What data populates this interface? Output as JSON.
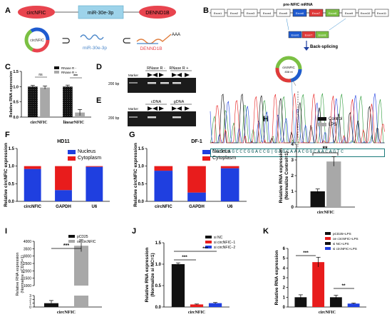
{
  "panels": {
    "A": "A",
    "B": "B",
    "C": "C",
    "D": "D",
    "E": "E",
    "F": "F",
    "G": "G",
    "H": "H",
    "I": "I",
    "J": "J",
    "K": "K"
  },
  "panel_a": {
    "circ_label": "circNFIC",
    "mir_label": "miR-30e-3p",
    "gene_label": "DENND1B",
    "ring_label": "circNFIC",
    "mir_small": "miR-30e-3p",
    "mrna_small": "DENND1B",
    "polya": "AAA",
    "colors": {
      "red": "#e8444e",
      "blue": "#9dd3ea"
    }
  },
  "panel_b": {
    "title": "pre-NFIC mRNA",
    "exons": [
      "Exon1",
      "Exon2",
      "Exon3",
      "Exon4",
      "Exon5",
      "Exon6",
      "Exon7",
      "Exon8",
      "Exon9",
      "Exon10",
      "Exon11"
    ],
    "exon_fill": [
      "#ffffff",
      "#ffffff",
      "#ffffff",
      "#ffffff",
      "#ffffff",
      "#1f5bd0",
      "#e03a3a",
      "#7bc043",
      "#ffffff",
      "#ffffff",
      "#ffffff"
    ],
    "small_exons": [
      "Exon6",
      "Exon7",
      "Exon8"
    ],
    "back_splicing": "Back-splicing",
    "ring_label": "circNFIC",
    "ring_sub": "838 nt",
    "sequence": "CAGCAGCCCGGACCG|GAGCAAACGGCAACAGTC"
  },
  "panel_c": {
    "legend": [
      "RNase R -",
      "RNase R +"
    ],
    "ylabel": "Relative RNA expression",
    "significance": [
      "ns",
      "***"
    ]
  },
  "panel_d": {
    "top_labels": [
      "RNase R -",
      "RNase R +"
    ],
    "marker": "Marker",
    "bp": "200 bp"
  },
  "panel_e": {
    "top_labels": [
      "cDNA",
      "gDNA"
    ],
    "marker": "Marker",
    "bp": "200 bp"
  },
  "panel_h": {
    "legend": [
      "Control",
      "LPS"
    ],
    "ylabel": "Relative RNA expression",
    "ylabel2": "(Normalize Control=1)",
    "significance": "**"
  },
  "panel_i": {
    "legend": [
      "pCD25",
      "oe circNFIC"
    ],
    "ylabel": "Relative RNA expression",
    "ylabel2": "(Normalize pCD25=1)",
    "significance": "***"
  },
  "panel_j": {
    "legend": [
      "si NC",
      "si circNFIC−1",
      "si circNFIC−2"
    ],
    "ylabel": "Relative RNA expression",
    "ylabel2": "(Normalize si NC=1)",
    "significance": [
      "***",
      "***"
    ]
  },
  "panel_k": {
    "legend": [
      "pCD25+LPS",
      "oe circNFIC+LPS",
      "si NC+LPS",
      "si circNFIC+LPS"
    ],
    "ylabel": "Relative RNA expression",
    "significance": [
      "***",
      "**"
    ]
  },
  "chart_data": [
    {
      "panel": "C",
      "type": "bar",
      "categories": [
        "circNFIC",
        "linearNFIC"
      ],
      "series": [
        {
          "name": "RNase R -",
          "values": [
            1.0,
            1.0
          ],
          "errors": [
            0.04,
            0.05
          ],
          "color": "#111111"
        },
        {
          "name": "RNase R +",
          "values": [
            0.97,
            0.15
          ],
          "errors": [
            0.05,
            0.1
          ],
          "color": "#a8a8a8"
        }
      ],
      "yticks": [
        "0.0",
        "0.5",
        "1.0",
        "1.5"
      ],
      "ylim": [
        0,
        1.5
      ],
      "ylabel": "Relative RNA expression"
    },
    {
      "panel": "F",
      "type": "bar",
      "stacked": true,
      "title": "HD11",
      "categories": [
        "circNFIC",
        "GAPDH",
        "U6"
      ],
      "series": [
        {
          "name": "Nucleus",
          "values": [
            0.92,
            0.32,
            0.98
          ],
          "color": "#1f3fe0"
        },
        {
          "name": "Cytoplasm",
          "values": [
            0.08,
            0.68,
            0.02
          ],
          "color": "#e81c1c"
        }
      ],
      "yticks": [
        "0.0",
        "0.5",
        "1.0",
        "1.5"
      ],
      "ylim": [
        0,
        1.5
      ],
      "ylabel": "Relative circNFIC expression"
    },
    {
      "panel": "G",
      "type": "bar",
      "stacked": true,
      "title": "DF-1",
      "categories": [
        "circNFIC",
        "GAPDH",
        "U6"
      ],
      "series": [
        {
          "name": "Nucleus",
          "values": [
            0.87,
            0.25,
            0.94
          ],
          "color": "#1f3fe0"
        },
        {
          "name": "Cytoplasm",
          "values": [
            0.13,
            0.75,
            0.06
          ],
          "color": "#e81c1c"
        }
      ],
      "yticks": [
        "0.0",
        "0.5",
        "1.0",
        "1.5"
      ],
      "ylim": [
        0,
        1.5
      ],
      "ylabel": "Relative circNFIC expression"
    },
    {
      "panel": "H",
      "type": "bar",
      "categories": [
        "circNFIC"
      ],
      "series": [
        {
          "name": "Control",
          "values": [
            1.0
          ],
          "errors": [
            0.15
          ],
          "color": "#111111"
        },
        {
          "name": "LPS",
          "values": [
            2.9
          ],
          "errors": [
            0.3
          ],
          "color": "#a8a8a8"
        }
      ],
      "yticks": [
        "0",
        "1",
        "2",
        "3",
        "4"
      ],
      "ylim": [
        0,
        4
      ],
      "ylabel": "Relative RNA expression"
    },
    {
      "panel": "I",
      "type": "bar",
      "categories": [
        "circNFIC"
      ],
      "broken_axis": true,
      "series": [
        {
          "name": "pCD25",
          "values": [
            1.0
          ],
          "errors": [
            0.7
          ],
          "color": "#111111"
        },
        {
          "name": "oe circNFIC",
          "values": [
            3700
          ],
          "errors": [
            400
          ],
          "color": "#a8a8a8"
        }
      ],
      "yticks_low": [
        "0",
        "1",
        "2",
        "3"
      ],
      "yticks_high": [
        "1000",
        "1500",
        "2000",
        "2500",
        "3000",
        "3500",
        "4000"
      ],
      "ylabel": "Relative RNA expression"
    },
    {
      "panel": "J",
      "type": "bar",
      "categories": [
        "circNFIC"
      ],
      "series": [
        {
          "name": "si NC",
          "values": [
            1.0
          ],
          "errors": [
            0.03
          ],
          "color": "#111111"
        },
        {
          "name": "si circNFIC−1",
          "values": [
            0.06
          ],
          "errors": [
            0.01
          ],
          "color": "#e81c1c"
        },
        {
          "name": "si circNFIC−2",
          "values": [
            0.09
          ],
          "errors": [
            0.015
          ],
          "color": "#1f3fe0"
        }
      ],
      "yticks": [
        "0.0",
        "0.5",
        "1.0",
        "1.5"
      ],
      "ylim": [
        0,
        1.5
      ],
      "ylabel": "Relative RNA expression"
    },
    {
      "panel": "K",
      "type": "bar",
      "categories": [
        "circNFIC"
      ],
      "series": [
        {
          "name": "pCD25+LPS",
          "values": [
            1.0
          ],
          "errors": [
            0.25
          ],
          "color": "#111111"
        },
        {
          "name": "oe circNFIC+LPS",
          "values": [
            4.6
          ],
          "errors": [
            0.5
          ],
          "color": "#e81c1c"
        },
        {
          "name": "si NC+LPS",
          "values": [
            1.0
          ],
          "errors": [
            0.2
          ],
          "color": "#111111"
        },
        {
          "name": "si circNFIC+LPS",
          "values": [
            0.35
          ],
          "errors": [
            0.05
          ],
          "color": "#1f3fe0"
        }
      ],
      "yticks": [
        "0",
        "1",
        "2",
        "3",
        "4",
        "5",
        "6"
      ],
      "ylim": [
        0,
        6
      ],
      "ylabel": "Relative RNA expression"
    }
  ]
}
